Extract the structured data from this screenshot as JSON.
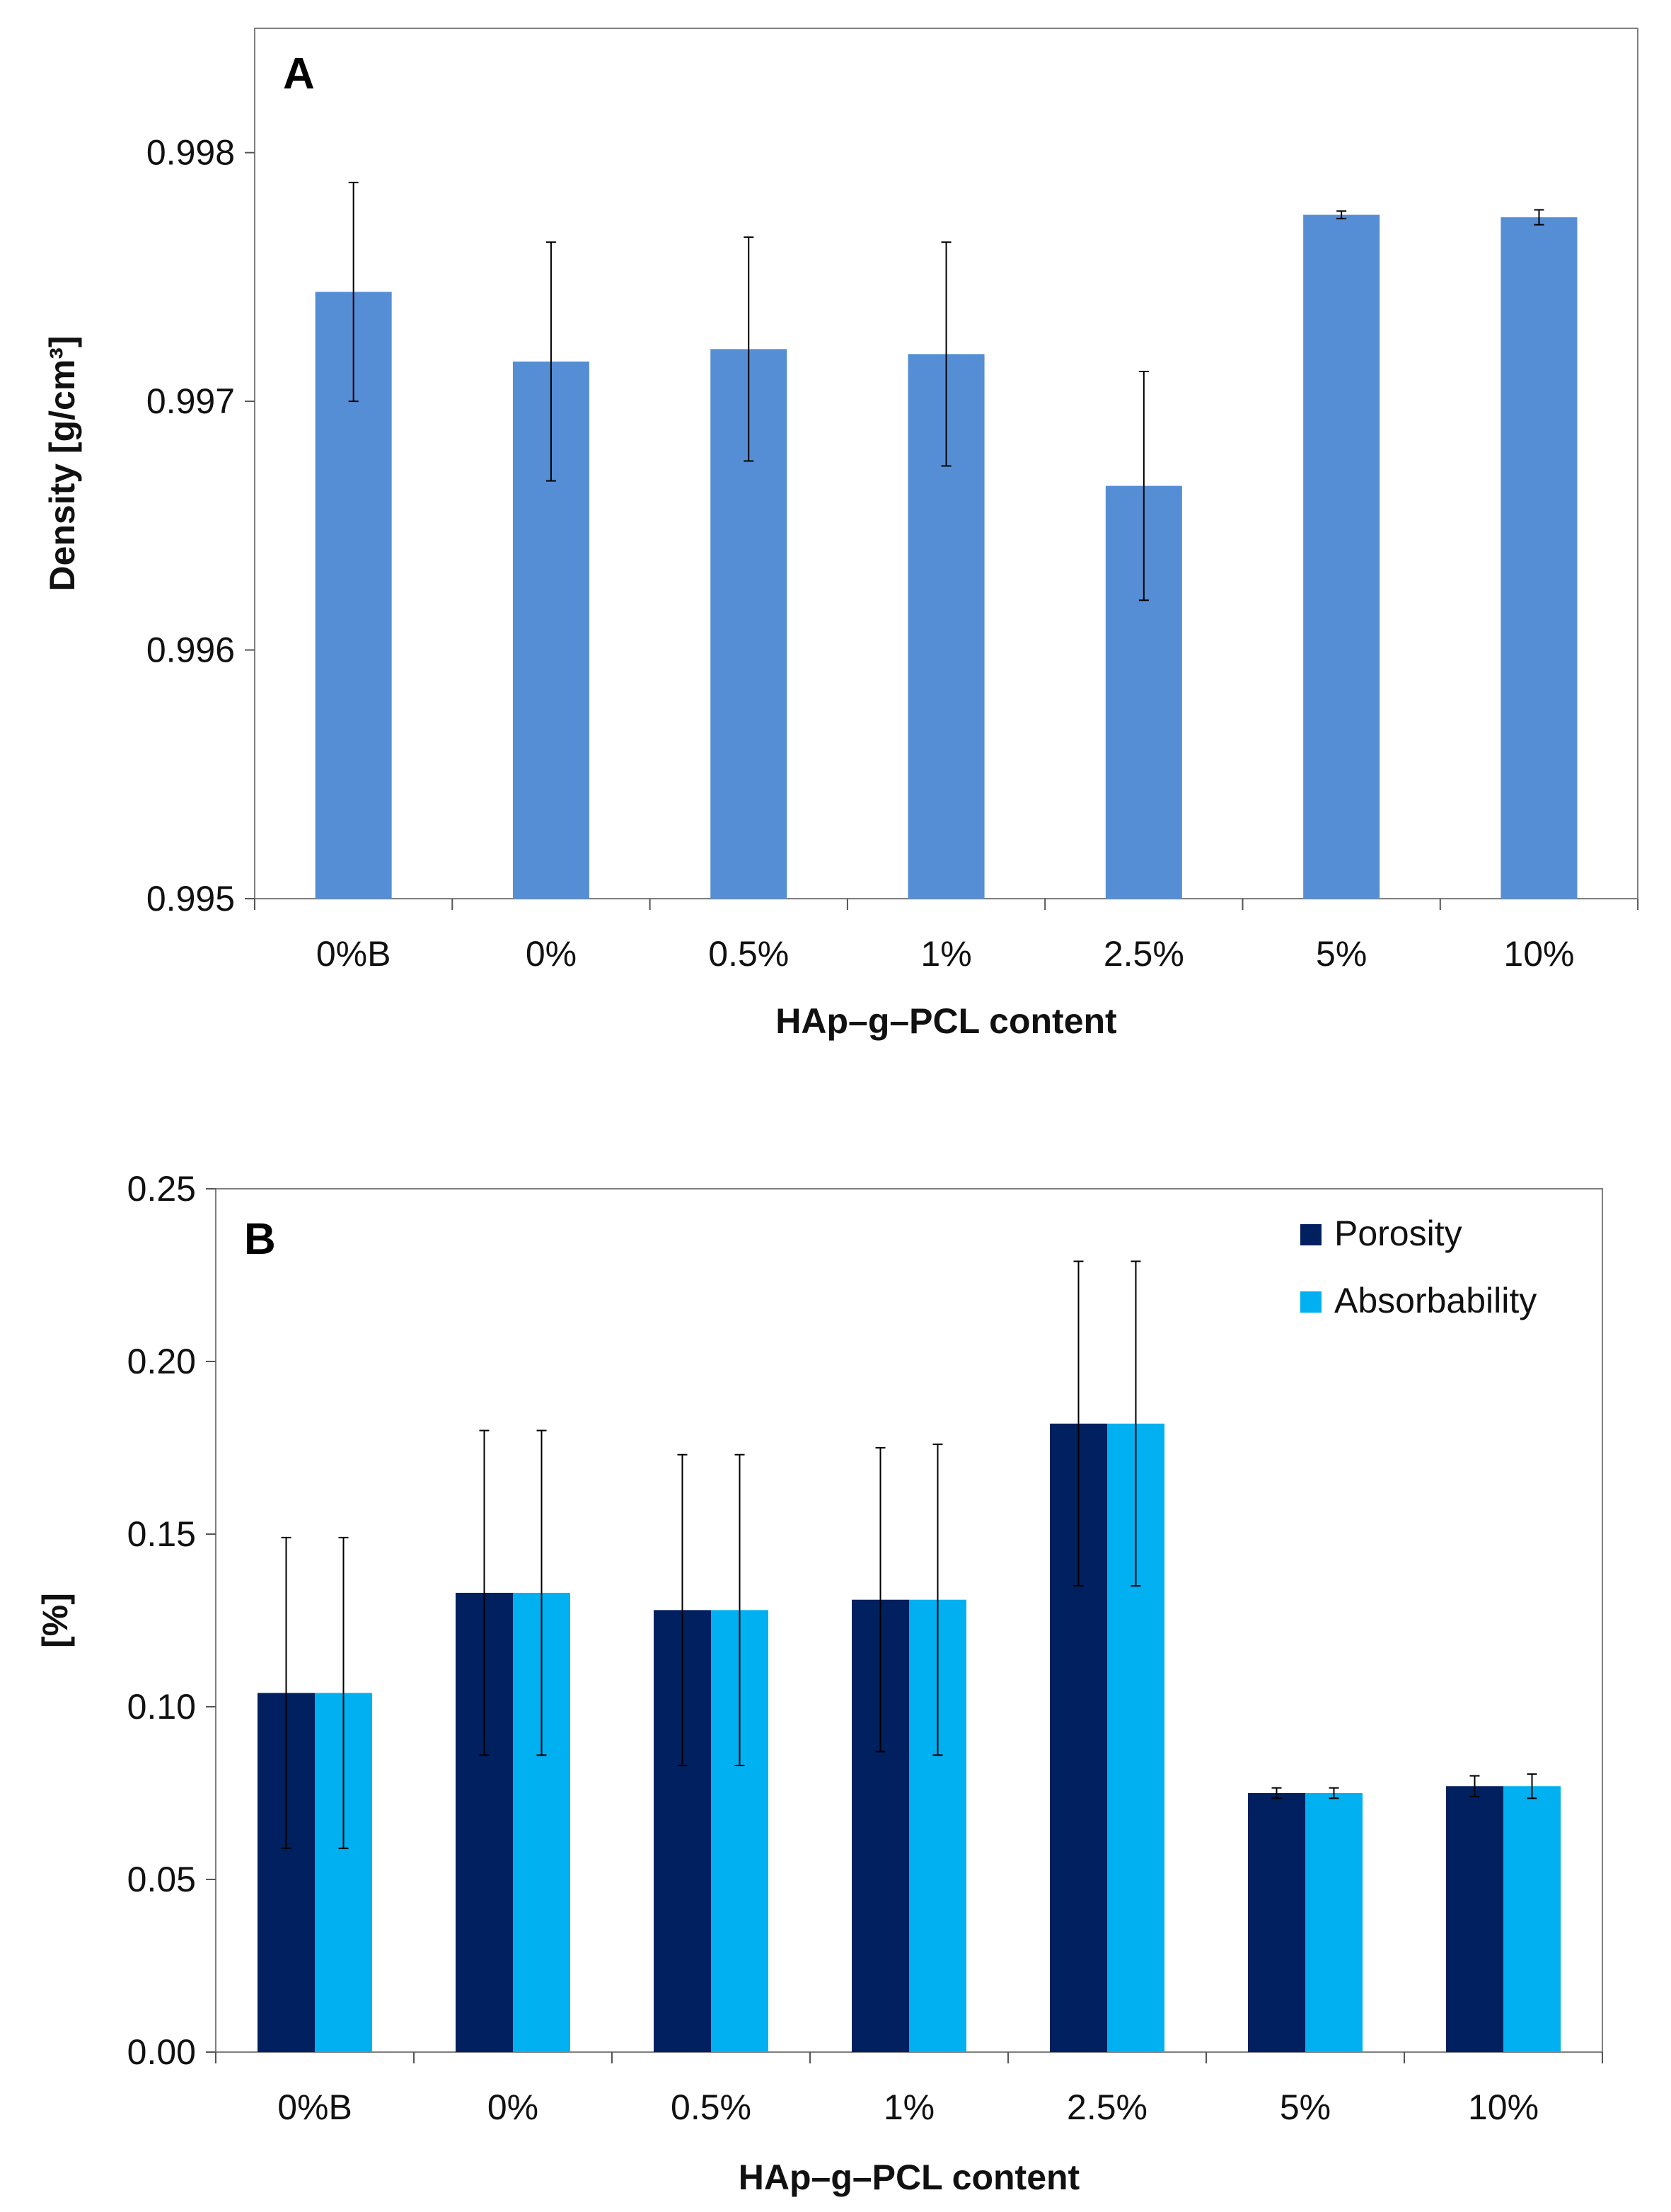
{
  "chart_data": [
    {
      "type": "bar",
      "panel": "A",
      "categories": [
        "0%B",
        "0%",
        "0.5%",
        "1%",
        "2.5%",
        "5%",
        "10%"
      ],
      "ylabel": "Density [g/cm³]",
      "xlabel": "HAp–g–PCL content",
      "ylim": [
        0.995,
        0.9985
      ],
      "yticks": [
        0.995,
        0.996,
        0.997,
        0.998
      ],
      "ytick_labels": [
        "0.995",
        "0.996",
        "0.997",
        "0.998"
      ],
      "series": [
        {
          "name": "Density",
          "color": "#558ED5",
          "values": [
            0.99744,
            0.99716,
            0.99721,
            0.99719,
            0.99666,
            0.99775,
            0.99774
          ],
          "errors": [
            0.00044,
            0.00048,
            0.00045,
            0.00045,
            0.00046,
            1.5e-05,
            3e-05
          ]
        }
      ]
    },
    {
      "type": "bar",
      "panel": "B",
      "categories": [
        "0%B",
        "0%",
        "0.5%",
        "1%",
        "2.5%",
        "5%",
        "10%"
      ],
      "ylabel": "[%]",
      "xlabel": "HAp–g–PCL content",
      "ylim": [
        0,
        0.25
      ],
      "yticks": [
        0,
        0.05,
        0.1,
        0.15,
        0.2,
        0.25
      ],
      "ytick_labels": [
        "0.00",
        "0.05",
        "0.10",
        "0.15",
        "0.20",
        "0.25"
      ],
      "legend_position": "top-right",
      "series": [
        {
          "name": "Porosity",
          "color": "#002060",
          "values": [
            0.104,
            0.133,
            0.128,
            0.131,
            0.182,
            0.075,
            0.077
          ],
          "errors": [
            0.045,
            0.047,
            0.045,
            0.044,
            0.047,
            0.0015,
            0.003
          ]
        },
        {
          "name": "Absorbability",
          "color": "#00B0F0",
          "values": [
            0.104,
            0.133,
            0.128,
            0.131,
            0.182,
            0.075,
            0.077
          ],
          "errors": [
            0.045,
            0.047,
            0.045,
            0.045,
            0.047,
            0.0015,
            0.0035
          ]
        }
      ]
    }
  ]
}
